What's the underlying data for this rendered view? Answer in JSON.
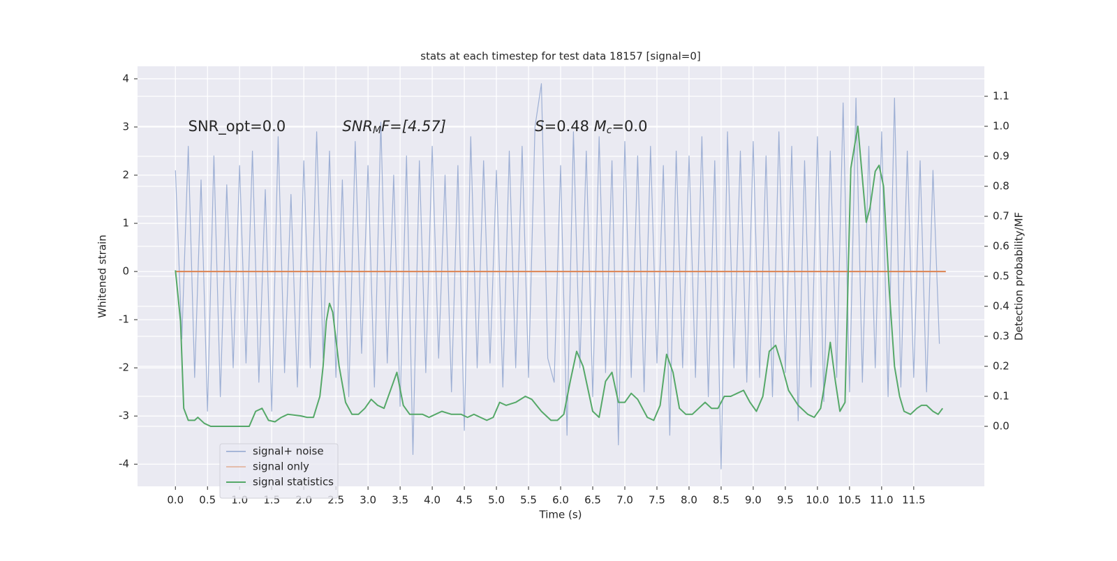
{
  "chart_data": {
    "type": "line",
    "title": "stats at each timestep for test data 18157 [signal=0]",
    "xlabel": "Time (s)",
    "ylabel": "Whitened strain",
    "y2label": "Detection probability/MF",
    "annotations": [
      {
        "x": 0.2,
        "y": 3.0,
        "parts": [
          "SNR_opt=0.0"
        ]
      },
      {
        "x": 2.6,
        "y": 3.0,
        "parts": [
          "SNR",
          "M",
          "F=[4.57]"
        ]
      },
      {
        "x": 5.6,
        "y": 3.0,
        "parts": [
          "S",
          "=0.48   ",
          "M",
          "c",
          "=0.0"
        ]
      }
    ],
    "xlim": [
      -0.59,
      12.6
    ],
    "ylim": [
      -4.46,
      4.26
    ],
    "y2lim": [
      -0.2,
      1.2
    ],
    "xticks": [
      {
        "value": 0,
        "label": "0.0"
      },
      0.5,
      {
        "value": 1,
        "label": "1.0"
      },
      1.5,
      {
        "value": 2,
        "label": "2.0"
      },
      2.5,
      {
        "value": 3,
        "label": "3.0"
      },
      3.5,
      {
        "value": 4,
        "label": "4.0"
      },
      4.5,
      {
        "value": 5,
        "label": "5.0"
      },
      5.5,
      {
        "value": 6,
        "label": "6.0"
      },
      6.5,
      {
        "value": 7,
        "label": "7.0"
      },
      7.5,
      {
        "value": 8,
        "label": "8.0"
      },
      8.5,
      {
        "value": 9,
        "label": "9.0"
      },
      9.5,
      {
        "value": 10,
        "label": "10.0"
      },
      10.5,
      {
        "value": 11,
        "label": "11.0"
      },
      11.5
    ],
    "yticks": [
      -4,
      -3,
      -2,
      -1,
      0,
      1,
      2,
      3,
      4
    ],
    "y2ticks": [
      {
        "value": 0,
        "label": "0.0"
      },
      0.1,
      0.2,
      0.3,
      0.4,
      0.5,
      0.6,
      0.7,
      0.8,
      0.9,
      {
        "value": 1,
        "label": "1.0"
      },
      1.1
    ],
    "grid": true,
    "legend": "lower left",
    "series": [
      {
        "name": "signal+ noise",
        "color": "#8fa5cf",
        "x": [
          0.0,
          0.1,
          0.2,
          0.3,
          0.4,
          0.5,
          0.6,
          0.7,
          0.8,
          0.9,
          1.0,
          1.1,
          1.2,
          1.3,
          1.4,
          1.5,
          1.6,
          1.7,
          1.8,
          1.9,
          2.0,
          2.1,
          2.2,
          2.3,
          2.4,
          2.5,
          2.6,
          2.7,
          2.8,
          2.9,
          3.0,
          3.1,
          3.2,
          3.3,
          3.4,
          3.5,
          3.6,
          3.7,
          3.8,
          3.9,
          4.0,
          4.1,
          4.2,
          4.3,
          4.4,
          4.5,
          4.6,
          4.7,
          4.8,
          4.9,
          5.0,
          5.1,
          5.2,
          5.3,
          5.4,
          5.5,
          5.6,
          5.7,
          5.8,
          5.9,
          6.0,
          6.1,
          6.2,
          6.3,
          6.4,
          6.5,
          6.6,
          6.7,
          6.8,
          6.9,
          7.0,
          7.1,
          7.2,
          7.3,
          7.4,
          7.5,
          7.6,
          7.7,
          7.8,
          7.9,
          8.0,
          8.1,
          8.2,
          8.3,
          8.4,
          8.5,
          8.6,
          8.7,
          8.8,
          8.9,
          9.0,
          9.1,
          9.2,
          9.3,
          9.4,
          9.5,
          9.6,
          9.7,
          9.8,
          9.9,
          10.0,
          10.1,
          10.2,
          10.3,
          10.4,
          10.5,
          10.6,
          10.7,
          10.8,
          10.9,
          11.0,
          11.1,
          11.2,
          11.3,
          11.4,
          11.5,
          11.6,
          11.7,
          11.8,
          11.9
        ],
        "values": [
          2.1,
          -1.4,
          2.6,
          -2.2,
          1.9,
          -2.9,
          2.4,
          -2.6,
          1.8,
          -2.0,
          2.2,
          -1.9,
          2.5,
          -2.3,
          1.7,
          -2.9,
          2.8,
          -2.1,
          1.6,
          -2.4,
          2.3,
          -2.0,
          2.9,
          -1.8,
          2.5,
          -2.2,
          1.9,
          -2.6,
          2.7,
          -1.7,
          2.2,
          -2.4,
          3.1,
          -1.9,
          2.0,
          -2.8,
          2.4,
          -3.8,
          2.3,
          -2.1,
          2.6,
          -1.8,
          2.0,
          -2.5,
          2.2,
          -3.3,
          2.8,
          -2.0,
          2.3,
          -1.9,
          2.1,
          -2.4,
          2.5,
          -2.0,
          2.6,
          -2.2,
          3.0,
          3.9,
          -1.8,
          -2.3,
          2.2,
          -3.4,
          2.9,
          -2.0,
          2.5,
          -2.6,
          2.8,
          -2.1,
          2.3,
          -3.6,
          2.7,
          -2.2,
          2.4,
          -2.5,
          2.6,
          -1.9,
          2.2,
          -3.4,
          2.5,
          -2.0,
          2.4,
          -2.2,
          2.8,
          -2.6,
          2.3,
          -4.1,
          2.9,
          -2.0,
          2.5,
          -2.3,
          2.7,
          -2.2,
          2.4,
          -2.6,
          2.9,
          -2.1,
          2.6,
          -3.1,
          2.3,
          -2.4,
          2.8,
          -2.7,
          2.5,
          -2.2,
          3.5,
          -2.5,
          3.6,
          -2.3,
          2.6,
          -2.0,
          2.9,
          -2.6,
          3.6,
          -2.4,
          2.5,
          -2.2,
          2.3,
          -2.5,
          2.1,
          -1.5
        ]
      },
      {
        "name": "signal only",
        "color": "#dd8452",
        "x": [
          0.0,
          12.0
        ],
        "values": [
          0,
          0
        ]
      },
      {
        "name": "signal statistics",
        "color": "#55a868",
        "axis": "y2",
        "x": [
          0.0,
          0.08,
          0.13,
          0.2,
          0.3,
          0.35,
          0.45,
          0.55,
          0.8,
          1.0,
          1.15,
          1.25,
          1.35,
          1.45,
          1.55,
          1.65,
          1.75,
          1.95,
          2.05,
          2.15,
          2.25,
          2.3,
          2.35,
          2.4,
          2.45,
          2.55,
          2.65,
          2.75,
          2.85,
          2.95,
          3.05,
          3.15,
          3.25,
          3.35,
          3.45,
          3.55,
          3.65,
          3.75,
          3.85,
          3.95,
          4.05,
          4.15,
          4.3,
          4.45,
          4.55,
          4.65,
          4.75,
          4.85,
          4.95,
          5.05,
          5.15,
          5.3,
          5.45,
          5.55,
          5.7,
          5.85,
          5.95,
          6.05,
          6.15,
          6.25,
          6.35,
          6.5,
          6.6,
          6.7,
          6.8,
          6.9,
          7.0,
          7.1,
          7.2,
          7.35,
          7.45,
          7.55,
          7.65,
          7.75,
          7.85,
          7.95,
          8.05,
          8.15,
          8.25,
          8.35,
          8.45,
          8.55,
          8.65,
          8.75,
          8.85,
          8.95,
          9.05,
          9.15,
          9.25,
          9.35,
          9.45,
          9.55,
          9.7,
          9.85,
          9.95,
          10.05,
          10.12,
          10.2,
          10.28,
          10.35,
          10.43,
          10.52,
          10.63,
          10.76,
          10.82,
          10.9,
          10.96,
          11.03,
          11.12,
          11.2,
          11.28,
          11.35,
          11.45,
          11.55,
          11.62,
          11.7,
          11.8,
          11.88,
          11.95
        ],
        "values": [
          0.52,
          0.35,
          0.06,
          0.02,
          0.02,
          0.03,
          0.01,
          0.0,
          0.0,
          0.0,
          0.0,
          0.05,
          0.06,
          0.02,
          0.015,
          0.03,
          0.04,
          0.035,
          0.03,
          0.03,
          0.1,
          0.2,
          0.35,
          0.41,
          0.38,
          0.2,
          0.08,
          0.04,
          0.04,
          0.06,
          0.09,
          0.07,
          0.06,
          0.12,
          0.18,
          0.07,
          0.04,
          0.04,
          0.04,
          0.03,
          0.04,
          0.05,
          0.04,
          0.04,
          0.03,
          0.04,
          0.03,
          0.02,
          0.03,
          0.08,
          0.07,
          0.08,
          0.1,
          0.09,
          0.05,
          0.02,
          0.02,
          0.04,
          0.15,
          0.25,
          0.2,
          0.05,
          0.03,
          0.15,
          0.18,
          0.08,
          0.08,
          0.11,
          0.09,
          0.03,
          0.02,
          0.07,
          0.24,
          0.18,
          0.06,
          0.04,
          0.04,
          0.06,
          0.08,
          0.06,
          0.06,
          0.1,
          0.1,
          0.11,
          0.12,
          0.08,
          0.05,
          0.1,
          0.25,
          0.27,
          0.2,
          0.12,
          0.07,
          0.04,
          0.03,
          0.06,
          0.15,
          0.28,
          0.15,
          0.05,
          0.08,
          0.86,
          1.0,
          0.68,
          0.73,
          0.85,
          0.87,
          0.8,
          0.45,
          0.2,
          0.1,
          0.05,
          0.04,
          0.06,
          0.07,
          0.07,
          0.05,
          0.04,
          0.06
        ]
      }
    ]
  }
}
